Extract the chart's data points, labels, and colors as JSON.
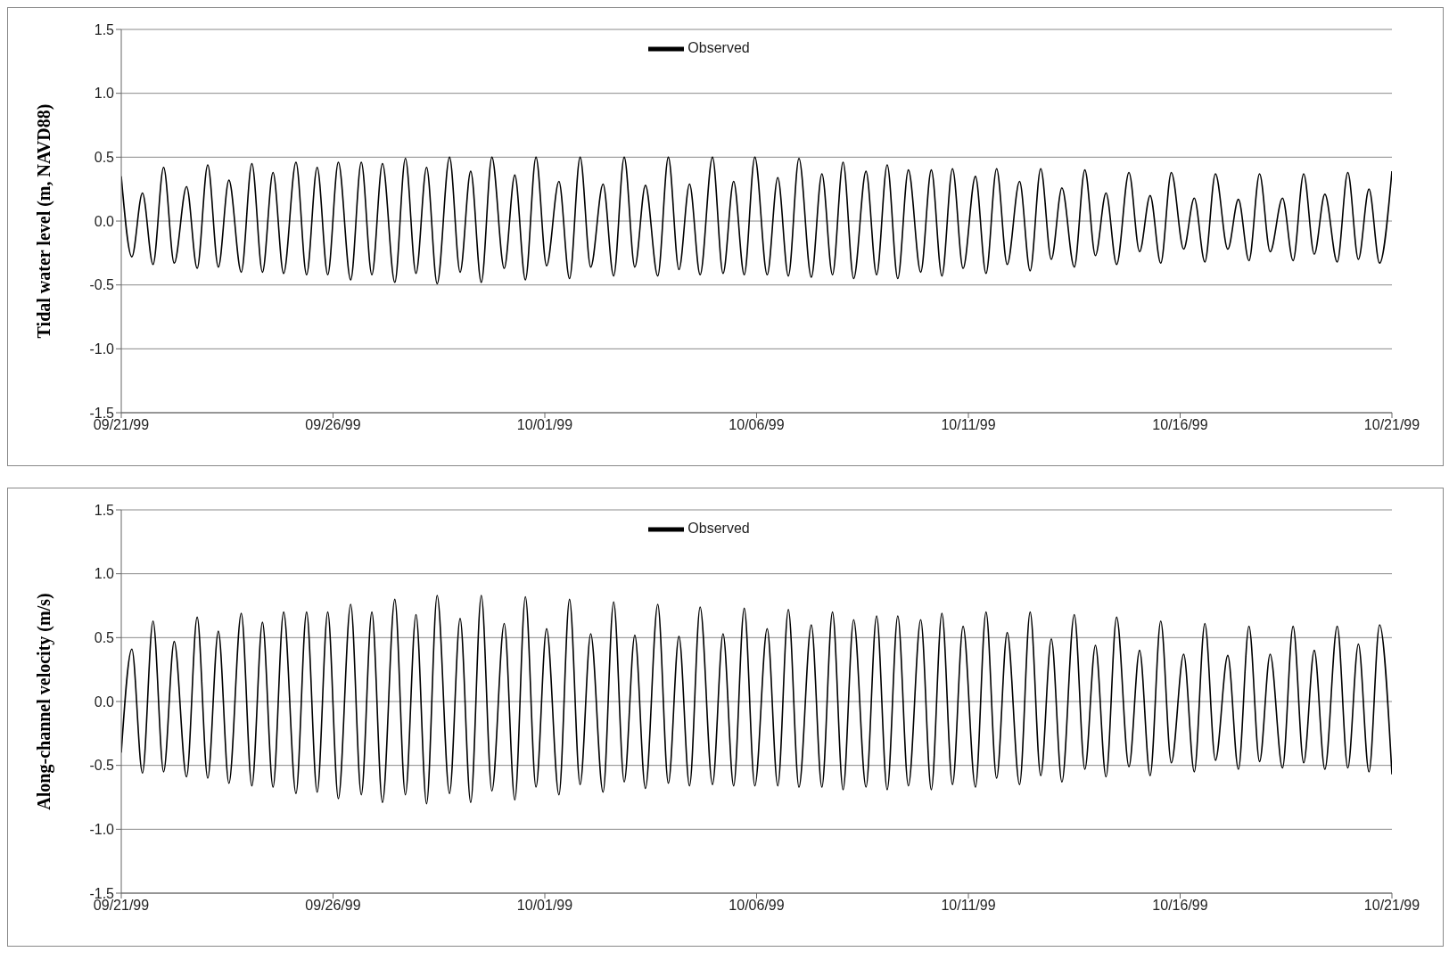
{
  "chart_data": [
    {
      "type": "line",
      "ylabel": "Tidal water level (m, NAVD88)",
      "xlim": [
        "1999-09-21",
        "1999-10-21"
      ],
      "xticks": [
        {
          "value": "1999-09-21",
          "label": "09/21/99"
        },
        {
          "value": "1999-09-26",
          "label": "09/26/99"
        },
        {
          "value": "1999-10-01",
          "label": "10/01/99"
        },
        {
          "value": "1999-10-06",
          "label": "10/06/99"
        },
        {
          "value": "1999-10-11",
          "label": "10/11/99"
        },
        {
          "value": "1999-10-16",
          "label": "10/16/99"
        },
        {
          "value": "1999-10-21",
          "label": "10/21/99"
        }
      ],
      "ylim": [
        -1.5,
        1.5
      ],
      "yticks": [
        -1.5,
        {
          "value": -1,
          "label": "-1.0"
        },
        -0.5,
        {
          "value": 0,
          "label": "0.0"
        },
        0.5,
        {
          "value": 1,
          "label": "1.0"
        },
        1.5
      ],
      "grid": "y",
      "legend": "top",
      "marker": "none",
      "line_style": "solid",
      "x": [
        "1999-09-21T00:00",
        "1999-09-21T06:00",
        "1999-09-21T12:00",
        "1999-09-21T18:00",
        "1999-09-22T00:00",
        "1999-09-22T06:00",
        "1999-09-22T13:00",
        "1999-09-22T19:00",
        "1999-09-23T01:00",
        "1999-09-23T07:00",
        "1999-09-23T13:00",
        "1999-09-23T20:00",
        "1999-09-24T02:00",
        "1999-09-24T08:00",
        "1999-09-24T14:00",
        "1999-09-24T20:00",
        "1999-09-25T03:00",
        "1999-09-25T09:00",
        "1999-09-25T15:00",
        "1999-09-25T21:00",
        "1999-09-26T03:00",
        "1999-09-26T10:00",
        "1999-09-26T16:00",
        "1999-09-26T22:00",
        "1999-09-27T04:00",
        "1999-09-27T11:00",
        "1999-09-27T17:00",
        "1999-09-27T23:00",
        "1999-09-28T05:00",
        "1999-09-28T11:00",
        "1999-09-28T18:00",
        "1999-09-29T00:00",
        "1999-09-29T06:00",
        "1999-09-29T12:00",
        "1999-09-29T18:00",
        "1999-09-30T01:00",
        "1999-09-30T07:00",
        "1999-09-30T13:00",
        "1999-09-30T19:00",
        "1999-10-01T01:00",
        "1999-10-01T08:00",
        "1999-10-01T14:00",
        "1999-10-01T20:00",
        "1999-10-02T02:00",
        "1999-10-02T09:00",
        "1999-10-02T15:00",
        "1999-10-02T21:00",
        "1999-10-03T03:00",
        "1999-10-03T09:00",
        "1999-10-03T16:00",
        "1999-10-03T22:00",
        "1999-10-04T04:00",
        "1999-10-04T10:00",
        "1999-10-04T16:00",
        "1999-10-04T23:00",
        "1999-10-05T05:00",
        "1999-10-05T11:00",
        "1999-10-05T17:00",
        "1999-10-05T23:00",
        "1999-10-06T06:00",
        "1999-10-06T12:00",
        "1999-10-06T18:00",
        "1999-10-07T00:00",
        "1999-10-07T07:00",
        "1999-10-07T13:00",
        "1999-10-07T19:00",
        "1999-10-08T01:00",
        "1999-10-08T07:00",
        "1999-10-08T14:00",
        "1999-10-08T20:00",
        "1999-10-09T02:00",
        "1999-10-09T08:00",
        "1999-10-09T14:00",
        "1999-10-09T21:00",
        "1999-10-10T03:00",
        "1999-10-10T09:00",
        "1999-10-10T15:00",
        "1999-10-10T21:00",
        "1999-10-11T04:00",
        "1999-10-11T10:00",
        "1999-10-11T16:00",
        "1999-10-11T22:00",
        "1999-10-12T05:00",
        "1999-10-12T11:00",
        "1999-10-12T17:00",
        "1999-10-12T23:00",
        "1999-10-13T05:00",
        "1999-10-13T12:00",
        "1999-10-13T18:00",
        "1999-10-14T00:00",
        "1999-10-14T06:00",
        "1999-10-14T12:00",
        "1999-10-14T19:00",
        "1999-10-15T01:00",
        "1999-10-15T07:00",
        "1999-10-15T13:00",
        "1999-10-15T19:00",
        "1999-10-16T02:00",
        "1999-10-16T08:00",
        "1999-10-16T14:00",
        "1999-10-16T20:00",
        "1999-10-17T03:00",
        "1999-10-17T09:00",
        "1999-10-17T15:00",
        "1999-10-17T21:00",
        "1999-10-18T03:00",
        "1999-10-18T10:00",
        "1999-10-18T16:00",
        "1999-10-18T22:00",
        "1999-10-19T04:00",
        "1999-10-19T10:00",
        "1999-10-19T17:00",
        "1999-10-19T23:00",
        "1999-10-20T05:00",
        "1999-10-20T11:00",
        "1999-10-20T17:00",
        "1999-10-21T00:00"
      ],
      "series": [
        {
          "name": "Observed",
          "color": "#000000",
          "values": [
            0.35,
            -0.28,
            0.22,
            -0.34,
            0.42,
            -0.33,
            0.27,
            -0.37,
            0.44,
            -0.36,
            0.32,
            -0.4,
            0.45,
            -0.4,
            0.38,
            -0.41,
            0.46,
            -0.42,
            0.42,
            -0.42,
            0.46,
            -0.46,
            0.46,
            -0.42,
            0.45,
            -0.48,
            0.49,
            -0.41,
            0.42,
            -0.49,
            0.5,
            -0.4,
            0.39,
            -0.48,
            0.5,
            -0.37,
            0.36,
            -0.46,
            0.5,
            -0.35,
            0.31,
            -0.45,
            0.5,
            -0.36,
            0.29,
            -0.43,
            0.5,
            -0.36,
            0.28,
            -0.43,
            0.5,
            -0.38,
            0.29,
            -0.42,
            0.5,
            -0.41,
            0.31,
            -0.42,
            0.5,
            -0.42,
            0.34,
            -0.43,
            0.49,
            -0.44,
            0.37,
            -0.42,
            0.46,
            -0.45,
            0.39,
            -0.42,
            0.44,
            -0.45,
            0.4,
            -0.4,
            0.4,
            -0.43,
            0.41,
            -0.37,
            0.35,
            -0.41,
            0.41,
            -0.34,
            0.31,
            -0.39,
            0.41,
            -0.3,
            0.26,
            -0.36,
            0.4,
            -0.27,
            0.22,
            -0.34,
            0.38,
            -0.24,
            0.2,
            -0.33,
            0.38,
            -0.22,
            0.18,
            -0.32,
            0.37,
            -0.22,
            0.17,
            -0.31,
            0.37,
            -0.24,
            0.18,
            -0.31,
            0.37,
            -0.26,
            0.21,
            -0.32,
            0.38,
            -0.3,
            0.25,
            -0.33,
            0.39
          ]
        }
      ]
    },
    {
      "type": "line",
      "ylabel": "Along-channel velocity (m/s)",
      "xlim": [
        "1999-09-21",
        "1999-10-21"
      ],
      "xticks": [
        {
          "value": "1999-09-21",
          "label": "09/21/99"
        },
        {
          "value": "1999-09-26",
          "label": "09/26/99"
        },
        {
          "value": "1999-10-01",
          "label": "10/01/99"
        },
        {
          "value": "1999-10-06",
          "label": "10/06/99"
        },
        {
          "value": "1999-10-11",
          "label": "10/11/99"
        },
        {
          "value": "1999-10-16",
          "label": "10/16/99"
        },
        {
          "value": "1999-10-21",
          "label": "10/21/99"
        }
      ],
      "ylim": [
        -1.5,
        1.5
      ],
      "yticks": [
        -1.5,
        {
          "value": -1,
          "label": "-1.0"
        },
        -0.5,
        {
          "value": 0,
          "label": "0.0"
        },
        0.5,
        {
          "value": 1,
          "label": "1.0"
        },
        1.5
      ],
      "grid": "y",
      "legend": "top",
      "marker": "none",
      "line_style": "solid",
      "x": [
        "1999-09-21T00:00",
        "1999-09-21T06:00",
        "1999-09-21T12:00",
        "1999-09-21T18:00",
        "1999-09-22T00:00",
        "1999-09-22T06:00",
        "1999-09-22T13:00",
        "1999-09-22T19:00",
        "1999-09-23T01:00",
        "1999-09-23T07:00",
        "1999-09-23T13:00",
        "1999-09-23T20:00",
        "1999-09-24T02:00",
        "1999-09-24T08:00",
        "1999-09-24T14:00",
        "1999-09-24T20:00",
        "1999-09-25T03:00",
        "1999-09-25T09:00",
        "1999-09-25T15:00",
        "1999-09-25T21:00",
        "1999-09-26T03:00",
        "1999-09-26T10:00",
        "1999-09-26T16:00",
        "1999-09-26T22:00",
        "1999-09-27T04:00",
        "1999-09-27T11:00",
        "1999-09-27T17:00",
        "1999-09-27T23:00",
        "1999-09-28T05:00",
        "1999-09-28T11:00",
        "1999-09-28T18:00",
        "1999-09-29T00:00",
        "1999-09-29T06:00",
        "1999-09-29T12:00",
        "1999-09-29T18:00",
        "1999-09-30T01:00",
        "1999-09-30T07:00",
        "1999-09-30T13:00",
        "1999-09-30T19:00",
        "1999-10-01T01:00",
        "1999-10-01T08:00",
        "1999-10-01T14:00",
        "1999-10-01T20:00",
        "1999-10-02T02:00",
        "1999-10-02T09:00",
        "1999-10-02T15:00",
        "1999-10-02T21:00",
        "1999-10-03T03:00",
        "1999-10-03T09:00",
        "1999-10-03T16:00",
        "1999-10-03T22:00",
        "1999-10-04T04:00",
        "1999-10-04T10:00",
        "1999-10-04T16:00",
        "1999-10-04T23:00",
        "1999-10-05T05:00",
        "1999-10-05T11:00",
        "1999-10-05T17:00",
        "1999-10-05T23:00",
        "1999-10-06T06:00",
        "1999-10-06T12:00",
        "1999-10-06T18:00",
        "1999-10-07T00:00",
        "1999-10-07T07:00",
        "1999-10-07T13:00",
        "1999-10-07T19:00",
        "1999-10-08T01:00",
        "1999-10-08T07:00",
        "1999-10-08T14:00",
        "1999-10-08T20:00",
        "1999-10-09T02:00",
        "1999-10-09T08:00",
        "1999-10-09T14:00",
        "1999-10-09T21:00",
        "1999-10-10T03:00",
        "1999-10-10T09:00",
        "1999-10-10T15:00",
        "1999-10-10T21:00",
        "1999-10-11T04:00",
        "1999-10-11T10:00",
        "1999-10-11T16:00",
        "1999-10-11T22:00",
        "1999-10-12T05:00",
        "1999-10-12T11:00",
        "1999-10-12T17:00",
        "1999-10-12T23:00",
        "1999-10-13T05:00",
        "1999-10-13T12:00",
        "1999-10-13T18:00",
        "1999-10-14T00:00",
        "1999-10-14T06:00",
        "1999-10-14T12:00",
        "1999-10-14T19:00",
        "1999-10-15T01:00",
        "1999-10-15T07:00",
        "1999-10-15T13:00",
        "1999-10-15T19:00",
        "1999-10-16T02:00",
        "1999-10-16T08:00",
        "1999-10-16T14:00",
        "1999-10-16T20:00",
        "1999-10-17T03:00",
        "1999-10-17T09:00",
        "1999-10-17T15:00",
        "1999-10-17T21:00",
        "1999-10-18T03:00",
        "1999-10-18T10:00",
        "1999-10-18T16:00",
        "1999-10-18T22:00",
        "1999-10-19T04:00",
        "1999-10-19T10:00",
        "1999-10-19T17:00",
        "1999-10-19T23:00",
        "1999-10-20T05:00",
        "1999-10-20T11:00",
        "1999-10-20T17:00",
        "1999-10-21T00:00"
      ],
      "series": [
        {
          "name": "Observed",
          "color": "#000000",
          "values": [
            -0.4,
            0.41,
            -0.56,
            0.63,
            -0.55,
            0.47,
            -0.59,
            0.66,
            -0.6,
            0.55,
            -0.64,
            0.69,
            -0.66,
            0.62,
            -0.67,
            0.7,
            -0.72,
            0.7,
            -0.71,
            0.7,
            -0.76,
            0.76,
            -0.73,
            0.7,
            -0.79,
            0.8,
            -0.73,
            0.68,
            -0.8,
            0.83,
            -0.72,
            0.65,
            -0.79,
            0.83,
            -0.7,
            0.61,
            -0.77,
            0.82,
            -0.67,
            0.57,
            -0.73,
            0.8,
            -0.65,
            0.53,
            -0.71,
            0.78,
            -0.63,
            0.52,
            -0.68,
            0.76,
            -0.64,
            0.51,
            -0.66,
            0.74,
            -0.65,
            0.53,
            -0.66,
            0.73,
            -0.66,
            0.57,
            -0.66,
            0.72,
            -0.67,
            0.6,
            -0.67,
            0.7,
            -0.69,
            0.64,
            -0.67,
            0.67,
            -0.69,
            0.67,
            -0.66,
            0.64,
            -0.69,
            0.69,
            -0.65,
            0.59,
            -0.67,
            0.7,
            -0.6,
            0.54,
            -0.65,
            0.7,
            -0.58,
            0.49,
            -0.63,
            0.68,
            -0.53,
            0.44,
            -0.59,
            0.66,
            -0.51,
            0.4,
            -0.58,
            0.63,
            -0.48,
            0.37,
            -0.55,
            0.61,
            -0.46,
            0.36,
            -0.53,
            0.59,
            -0.47,
            0.37,
            -0.52,
            0.59,
            -0.48,
            0.4,
            -0.53,
            0.59,
            -0.52,
            0.45,
            -0.55,
            0.6,
            -0.57
          ]
        }
      ]
    }
  ]
}
